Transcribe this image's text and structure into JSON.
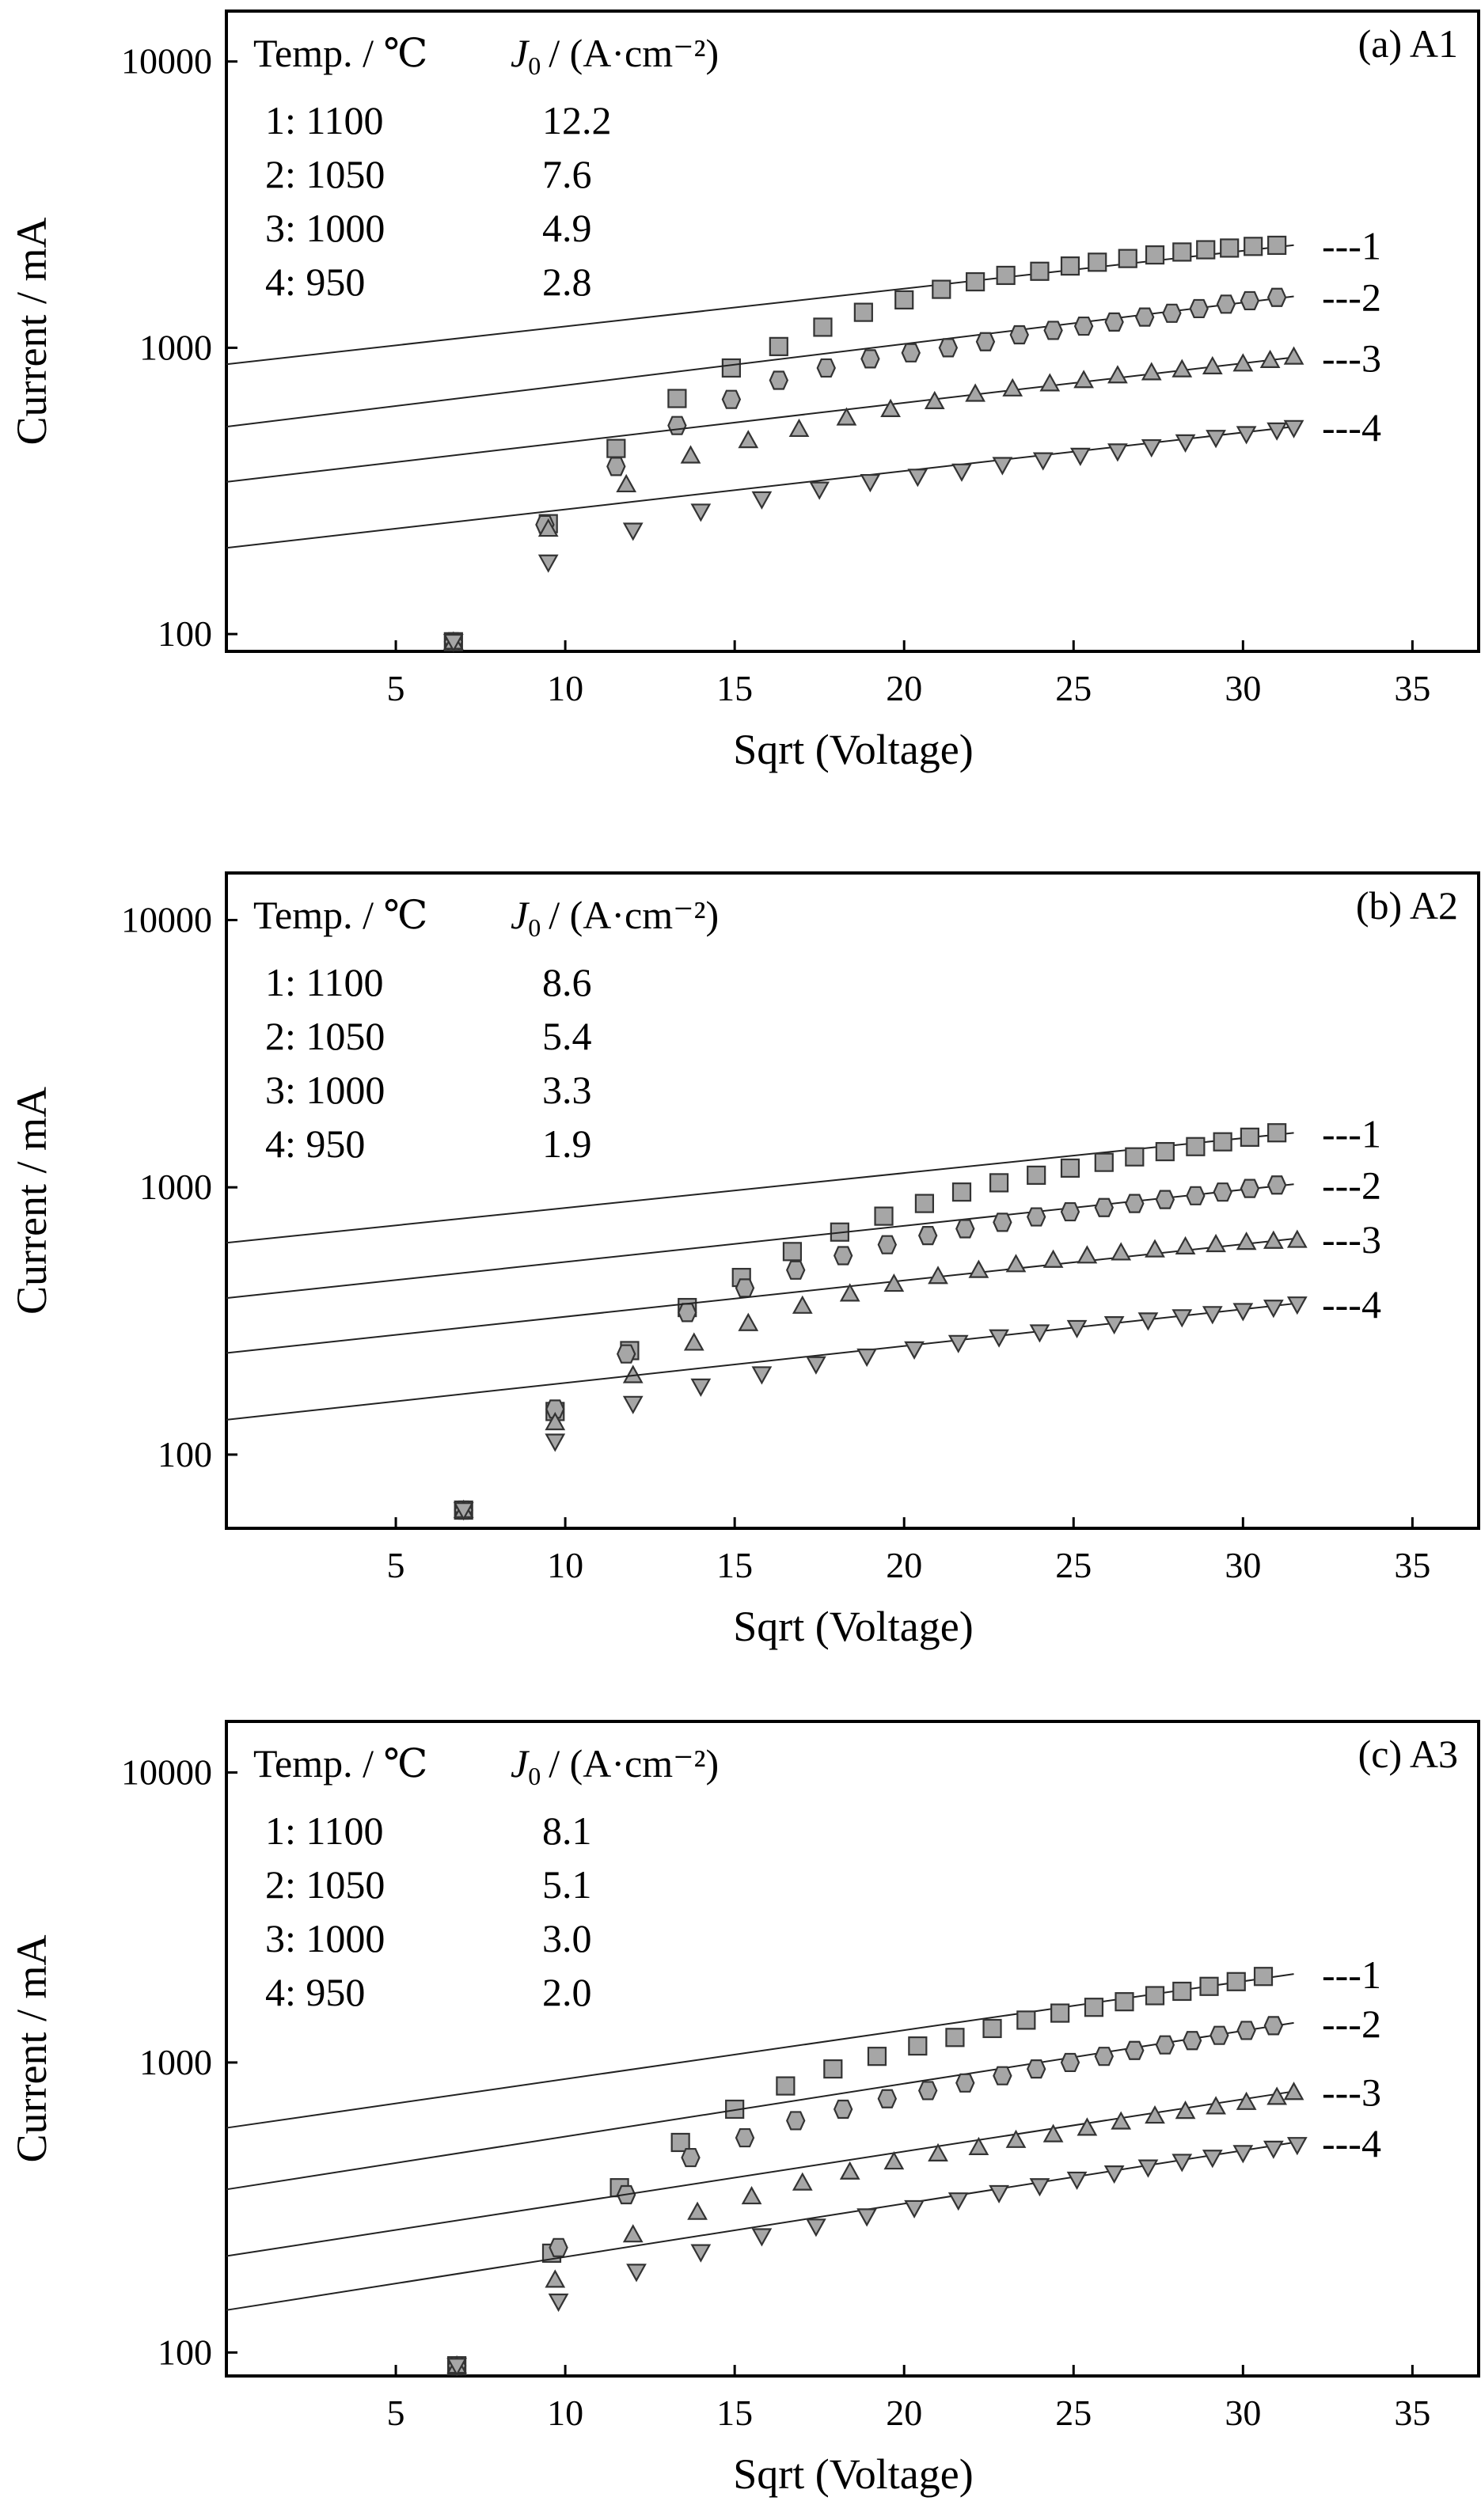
{
  "chart_data": [
    {
      "type": "scatter",
      "panel_label": "(a) A1",
      "xlabel": "Sqrt (Voltage)",
      "ylabel": "Current / mA",
      "xlim": [
        0,
        37
      ],
      "ylim": [
        87,
        15000
      ],
      "y_scale": "log",
      "x_ticks": [
        "5",
        "10",
        "15",
        "20",
        "25",
        "30",
        "35"
      ],
      "y_ticks": [
        "100",
        "1000",
        "10000"
      ],
      "table": {
        "header_temp": "Temp. / ℃",
        "header_j0_symbol": "J",
        "header_j0_sub": "0",
        "header_j0_unit": "/ (A·cm⁻²)",
        "rows": [
          {
            "temp": "1: 1100",
            "j0": "12.2"
          },
          {
            "temp": "2: 1050",
            "j0": "7.6"
          },
          {
            "temp": "3: 1000",
            "j0": "4.9"
          },
          {
            "temp": "4: 950",
            "j0": "2.8"
          }
        ]
      },
      "line_labels": [
        "---1",
        "---2",
        "---3",
        "---4"
      ],
      "series": [
        {
          "name": "1",
          "marker": "square",
          "x": [
            6.7,
            9.5,
            11.5,
            13.3,
            14.9,
            16.3,
            17.6,
            18.8,
            20.0,
            21.1,
            22.1,
            23.0,
            24.0,
            24.9,
            25.7,
            26.6,
            27.4,
            28.2,
            28.9,
            29.6,
            30.3,
            31.0
          ],
          "y": [
            94,
            243,
            445,
            665,
            850,
            1010,
            1180,
            1330,
            1470,
            1600,
            1700,
            1790,
            1850,
            1930,
            1990,
            2050,
            2110,
            2160,
            2200,
            2230,
            2260,
            2280
          ],
          "fit": [
            876,
            2283
          ]
        },
        {
          "name": "2",
          "marker": "circle",
          "x": [
            6.7,
            9.4,
            11.5,
            13.3,
            14.9,
            16.3,
            17.7,
            19.0,
            20.2,
            21.3,
            22.4,
            23.4,
            24.4,
            25.3,
            26.2,
            27.1,
            27.9,
            28.7,
            29.5,
            30.2,
            31.0
          ],
          "y": [
            94,
            241,
            385,
            535,
            660,
            770,
            850,
            915,
            960,
            1000,
            1050,
            1110,
            1150,
            1190,
            1230,
            1280,
            1320,
            1370,
            1420,
            1460,
            1500
          ],
          "fit": [
            530,
            1512
          ]
        },
        {
          "name": "3",
          "marker": "triangle-up",
          "x": [
            6.7,
            9.5,
            11.8,
            13.7,
            15.4,
            16.9,
            18.3,
            19.6,
            20.9,
            22.1,
            23.2,
            24.3,
            25.3,
            26.3,
            27.3,
            28.2,
            29.1,
            30.0,
            30.8,
            31.5
          ],
          "y": [
            94,
            233,
            333,
            420,
            475,
            520,
            570,
            610,
            650,
            690,
            720,
            750,
            770,
            800,
            820,
            840,
            860,
            880,
            905,
            930
          ],
          "fit": [
            340,
            926
          ]
        },
        {
          "name": "4",
          "marker": "triangle-down",
          "x": [
            6.7,
            9.5,
            12.0,
            14.0,
            15.8,
            17.5,
            19.0,
            20.4,
            21.7,
            22.9,
            24.1,
            25.2,
            26.3,
            27.3,
            28.3,
            29.2,
            30.1,
            31.0,
            31.5
          ],
          "y": [
            94,
            178,
            230,
            268,
            296,
            320,
            340,
            355,
            370,
            390,
            405,
            420,
            435,
            450,
            468,
            485,
            500,
            515,
            525
          ],
          "fit": [
            200,
            530
          ]
        }
      ]
    },
    {
      "type": "scatter",
      "panel_label": "(b) A2",
      "xlabel": "Sqrt (Voltage)",
      "ylabel": "Current / mA",
      "xlim": [
        0,
        37
      ],
      "ylim": [
        53,
        15000
      ],
      "y_scale": "log",
      "x_ticks": [
        "5",
        "10",
        "15",
        "20",
        "25",
        "30",
        "35"
      ],
      "y_ticks": [
        "100",
        "1000",
        "10000"
      ],
      "table": {
        "header_temp": "Temp. / ℃",
        "header_j0_symbol": "J",
        "header_j0_sub": "0",
        "header_j0_unit": "/ (A·cm⁻²)",
        "rows": [
          {
            "temp": "1: 1100",
            "j0": "8.6"
          },
          {
            "temp": "2: 1050",
            "j0": "5.4"
          },
          {
            "temp": "3: 1000",
            "j0": "3.3"
          },
          {
            "temp": "4: 950",
            "j0": "1.9"
          }
        ]
      },
      "line_labels": [
        "---1",
        "---2",
        "---3",
        "---4"
      ],
      "series": [
        {
          "name": "1",
          "marker": "square",
          "x": [
            7.0,
            9.7,
            11.9,
            13.6,
            15.2,
            16.7,
            18.1,
            19.4,
            20.6,
            21.7,
            22.8,
            23.9,
            24.9,
            25.9,
            26.8,
            27.7,
            28.6,
            29.4,
            30.2,
            31.0
          ],
          "y": [
            62,
            145,
            245,
            355,
            460,
            575,
            680,
            780,
            870,
            960,
            1040,
            1110,
            1180,
            1240,
            1300,
            1360,
            1420,
            1480,
            1540,
            1600
          ],
          "fit": [
            620,
            1598
          ]
        },
        {
          "name": "2",
          "marker": "circle",
          "x": [
            7.0,
            9.7,
            11.8,
            13.6,
            15.3,
            16.8,
            18.2,
            19.5,
            20.7,
            21.8,
            22.9,
            23.9,
            24.9,
            25.9,
            26.8,
            27.7,
            28.6,
            29.4,
            30.2,
            31.0
          ],
          "y": [
            62,
            148,
            238,
            340,
            420,
            490,
            555,
            610,
            660,
            700,
            740,
            775,
            810,
            840,
            870,
            900,
            930,
            960,
            990,
            1020
          ],
          "fit": [
            385,
            1027
          ]
        },
        {
          "name": "3",
          "marker": "triangle-up",
          "x": [
            7.0,
            9.7,
            12.0,
            13.8,
            15.4,
            17.0,
            18.4,
            19.7,
            21.0,
            22.2,
            23.3,
            24.4,
            25.4,
            26.4,
            27.4,
            28.3,
            29.2,
            30.1,
            30.9,
            31.6
          ],
          "y": [
            62,
            132,
            198,
            262,
            310,
            360,
            400,
            435,
            465,
            490,
            515,
            535,
            555,
            570,
            585,
            600,
            612,
            624,
            630,
            635
          ],
          "fit": [
            240,
            642
          ]
        },
        {
          "name": "4",
          "marker": "triangle-down",
          "x": [
            7.0,
            9.7,
            12.0,
            14.0,
            15.8,
            17.4,
            18.9,
            20.3,
            21.6,
            22.8,
            24.0,
            25.1,
            26.2,
            27.2,
            28.2,
            29.1,
            30.0,
            30.9,
            31.6
          ],
          "y": [
            62,
            112,
            155,
            180,
            200,
            218,
            233,
            248,
            262,
            275,
            287,
            298,
            308,
            318,
            327,
            336,
            345,
            355,
            365
          ],
          "fit": [
            135,
            367
          ]
        }
      ]
    },
    {
      "type": "scatter",
      "panel_label": "(c) A3",
      "xlabel": "Sqrt (Voltage)",
      "ylabel": "Current / mA",
      "xlim": [
        0,
        37
      ],
      "ylim": [
        83,
        15000
      ],
      "y_scale": "log",
      "x_ticks": [
        "5",
        "10",
        "15",
        "20",
        "25",
        "30",
        "35"
      ],
      "y_ticks": [
        "100",
        "1000",
        "10000"
      ],
      "table": {
        "header_temp": "Temp. / ℃",
        "header_j0_symbol": "J",
        "header_j0_sub": "0",
        "header_j0_unit": "/ (A·cm⁻²)",
        "rows": [
          {
            "temp": "1: 1100",
            "j0": "8.1"
          },
          {
            "temp": "2: 1050",
            "j0": "5.1"
          },
          {
            "temp": "3: 1000",
            "j0": "3.0"
          },
          {
            "temp": "4: 950",
            "j0": "2.0"
          }
        ]
      },
      "line_labels": [
        "---1",
        "---2",
        "---3",
        "---4"
      ],
      "series": [
        {
          "name": "1",
          "marker": "square",
          "x": [
            6.8,
            9.6,
            11.6,
            13.4,
            15.0,
            16.5,
            17.9,
            19.2,
            20.4,
            21.5,
            22.6,
            23.6,
            24.6,
            25.6,
            26.5,
            27.4,
            28.2,
            29.0,
            29.8,
            30.6
          ],
          "y": [
            90,
            220,
            370,
            530,
            690,
            830,
            950,
            1050,
            1140,
            1220,
            1310,
            1400,
            1480,
            1550,
            1620,
            1700,
            1760,
            1830,
            1900,
            1980
          ],
          "fit": [
            595,
            2019
          ]
        },
        {
          "name": "2",
          "marker": "circle",
          "x": [
            6.8,
            9.8,
            11.8,
            13.7,
            15.3,
            16.8,
            18.2,
            19.5,
            20.7,
            21.8,
            22.9,
            23.9,
            24.9,
            25.9,
            26.8,
            27.7,
            28.5,
            29.3,
            30.1,
            30.9
          ],
          "y": [
            90,
            230,
            350,
            470,
            550,
            630,
            690,
            750,
            800,
            850,
            900,
            950,
            1000,
            1050,
            1100,
            1150,
            1190,
            1240,
            1290,
            1340
          ],
          "fit": [
            365,
            1370
          ]
        },
        {
          "name": "3",
          "marker": "triangle-up",
          "x": [
            6.8,
            9.7,
            12.0,
            13.9,
            15.5,
            17.0,
            18.4,
            19.7,
            21.0,
            22.2,
            23.3,
            24.4,
            25.4,
            26.4,
            27.4,
            28.3,
            29.2,
            30.1,
            31.0,
            31.5
          ],
          "y": [
            90,
            178,
            255,
            305,
            345,
            385,
            420,
            455,
            485,
            510,
            540,
            565,
            595,
            625,
            655,
            680,
            705,
            730,
            760,
            790
          ],
          "fit": [
            215,
            795
          ]
        },
        {
          "name": "4",
          "marker": "triangle-down",
          "x": [
            6.8,
            9.8,
            12.1,
            14.0,
            15.8,
            17.4,
            18.9,
            20.3,
            21.6,
            22.8,
            24.0,
            25.1,
            26.2,
            27.2,
            28.2,
            29.1,
            30.0,
            30.9,
            31.6
          ],
          "y": [
            90,
            150,
            190,
            222,
            252,
            272,
            295,
            315,
            335,
            355,
            375,
            395,
            415,
            435,
            455,
            470,
            488,
            505,
            520
          ],
          "fit": [
            140,
            530
          ]
        }
      ]
    }
  ]
}
